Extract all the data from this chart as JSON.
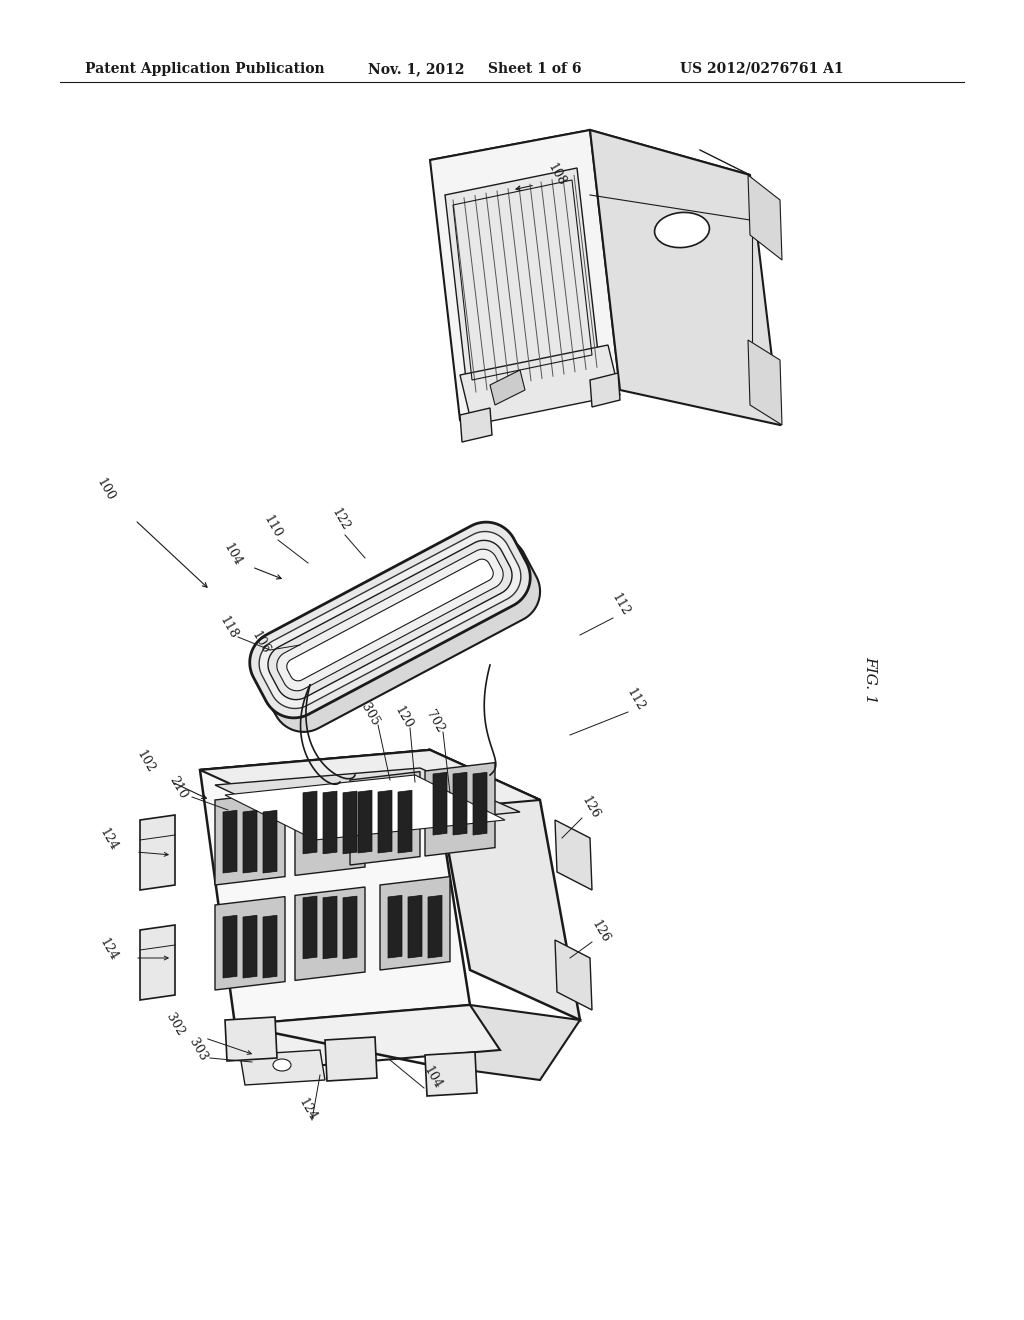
{
  "title": "Patent Application Publication",
  "date": "Nov. 1, 2012",
  "sheet": "Sheet 1 of 6",
  "patent_num": "US 2012/0276761 A1",
  "fig_label": "FIG. 1",
  "bg_color": "#ffffff",
  "line_color": "#1a1a1a",
  "text_color": "#1a1a1a",
  "header_fontsize": 10,
  "label_fontsize": 9,
  "fig_label_fontsize": 11
}
